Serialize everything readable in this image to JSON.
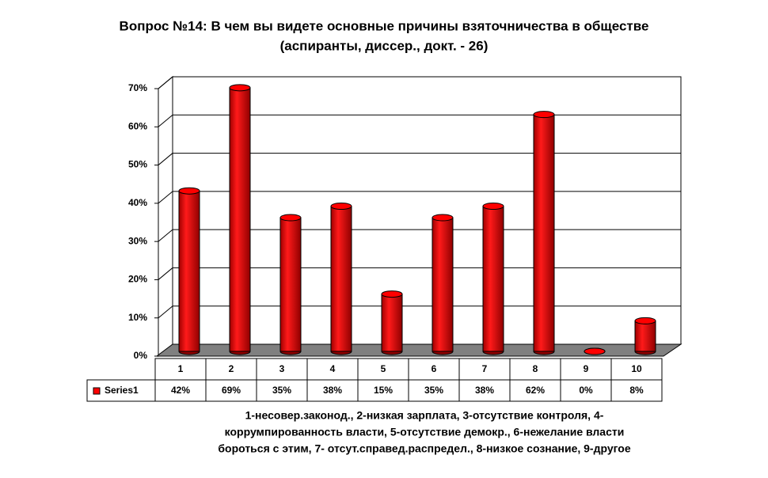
{
  "chart_data": {
    "type": "bar",
    "title": "Вопрос №14: В чем вы видете основные причины взяточничества в обществе",
    "subtitle": "(аспиранты, диссер., докт. - 26)",
    "categories": [
      "1",
      "2",
      "3",
      "4",
      "5",
      "6",
      "7",
      "8",
      "9",
      "10"
    ],
    "series": [
      {
        "name": "Series1",
        "color": "#ff0000",
        "values": [
          42,
          69,
          35,
          38,
          15,
          35,
          38,
          62,
          0,
          8
        ],
        "value_labels": [
          "42%",
          "69%",
          "35%",
          "38%",
          "15%",
          "35%",
          "38%",
          "62%",
          "0%",
          "8%"
        ]
      }
    ],
    "ylim": [
      0,
      70
    ],
    "yticks": [
      {
        "value": 0,
        "label": "0%"
      },
      {
        "value": 10,
        "label": "10%"
      },
      {
        "value": 20,
        "label": "20%"
      },
      {
        "value": 30,
        "label": "30%"
      },
      {
        "value": 40,
        "label": "40%"
      },
      {
        "value": 50,
        "label": "50%"
      },
      {
        "value": 60,
        "label": "60%"
      },
      {
        "value": 70,
        "label": "70%"
      }
    ],
    "grid": true,
    "annotations": [
      "1-несовер.законод., 2-низкая зарплата, 3-отсутствие контроля, 4-",
      "коррумпированность власти, 5-отсутствие демокр., 6-нежелание власти",
      "бороться с этим, 7- отсут.справед.распредел., 8-низкое сознание, 9-другое"
    ]
  }
}
